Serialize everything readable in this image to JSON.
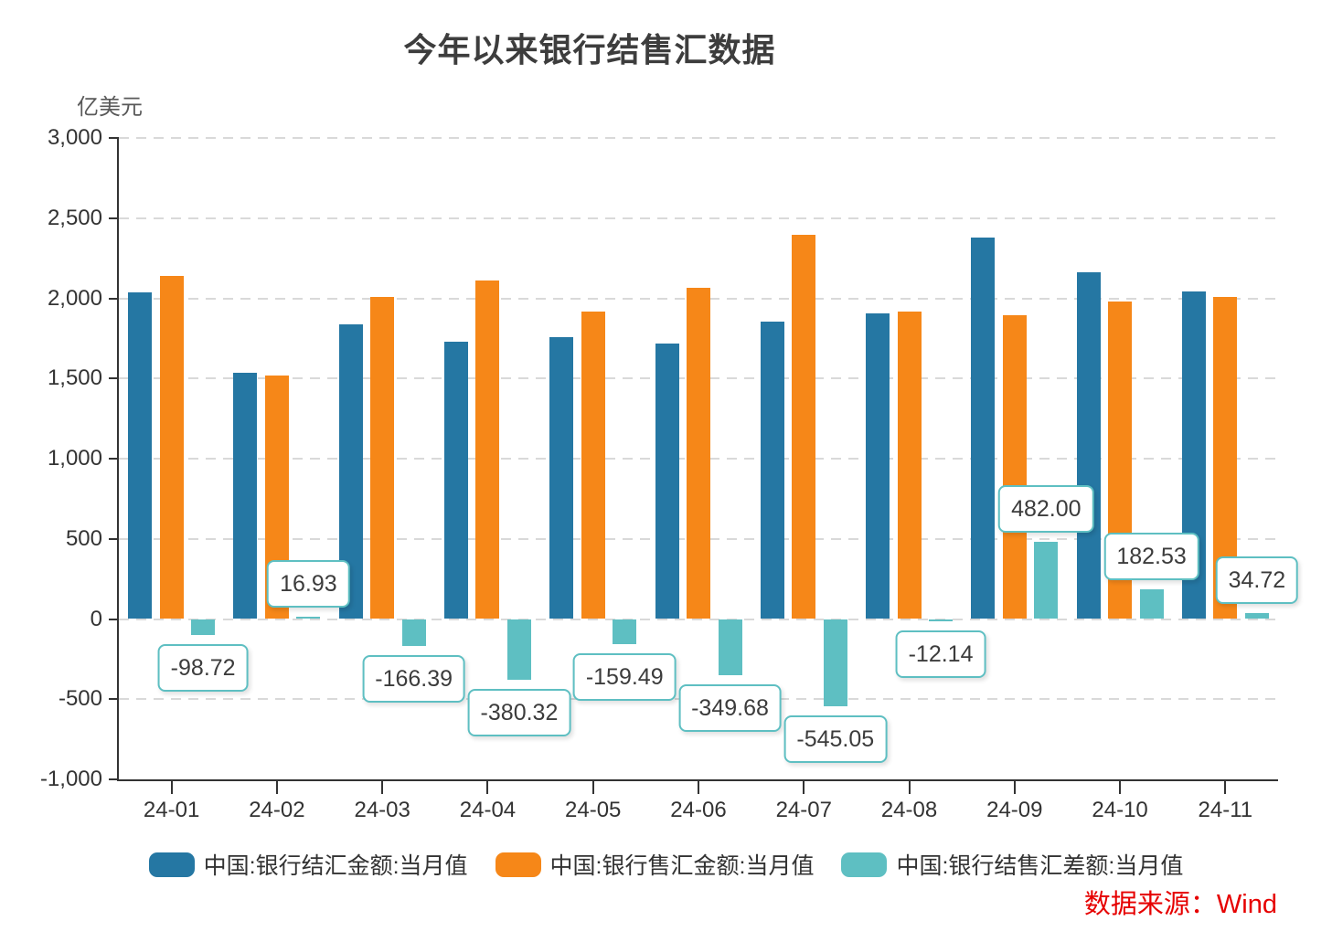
{
  "title": "今年以来银行结售汇数据",
  "y_axis_unit": "亿美元",
  "source_note": "数据来源：Wind",
  "colors": {
    "settlement_blue": "#2577a3",
    "sales_orange": "#f68718",
    "balance_teal": "#5ebfc2",
    "grid": "#d9d9d9",
    "axis": "#333333",
    "source_red": "#e60000",
    "label_box_border": "#5ebfc2"
  },
  "chart_data": {
    "type": "bar",
    "categories": [
      "24-01",
      "24-02",
      "24-03",
      "24-04",
      "24-05",
      "24-06",
      "24-07",
      "24-08",
      "24-09",
      "24-10",
      "24-11"
    ],
    "series": [
      {
        "key": "settlement",
        "name": "中国:银行结汇金额:当月值",
        "color": "#2577a3",
        "values": [
          2038.6,
          1538.1,
          1840.4,
          1732.0,
          1756.8,
          1715.1,
          1851.9,
          1903.9,
          2378.7,
          2163.9,
          2040.8
        ]
      },
      {
        "key": "sales",
        "name": "中国:银行售汇金额:当月值",
        "color": "#f68718",
        "values": [
          2137.3,
          1521.1,
          2006.8,
          2112.3,
          1916.3,
          2064.8,
          2396.9,
          1916.0,
          1896.7,
          1981.4,
          2006.1
        ]
      },
      {
        "key": "balance",
        "name": "中国:银行结售汇差额:当月值",
        "color": "#5ebfc2",
        "values": [
          -98.72,
          16.93,
          -166.39,
          -380.32,
          -159.49,
          -349.68,
          -545.05,
          -12.14,
          482.0,
          182.53,
          34.72
        ],
        "data_labels": [
          "-98.72",
          "16.93",
          "-166.39",
          "-380.32",
          "-159.49",
          "-349.68",
          "-545.05",
          "-12.14",
          "482.00",
          "182.53",
          "34.72"
        ]
      }
    ],
    "ylabel": "亿美元",
    "ylim": [
      -1000,
      3000
    ],
    "ytick_step": 500,
    "ytick_labels": [
      "3,000",
      "2,500",
      "2,000",
      "1,500",
      "1,000",
      "500",
      "0",
      "-500",
      "-1,000"
    ],
    "grid": true,
    "legend_position": "bottom"
  }
}
